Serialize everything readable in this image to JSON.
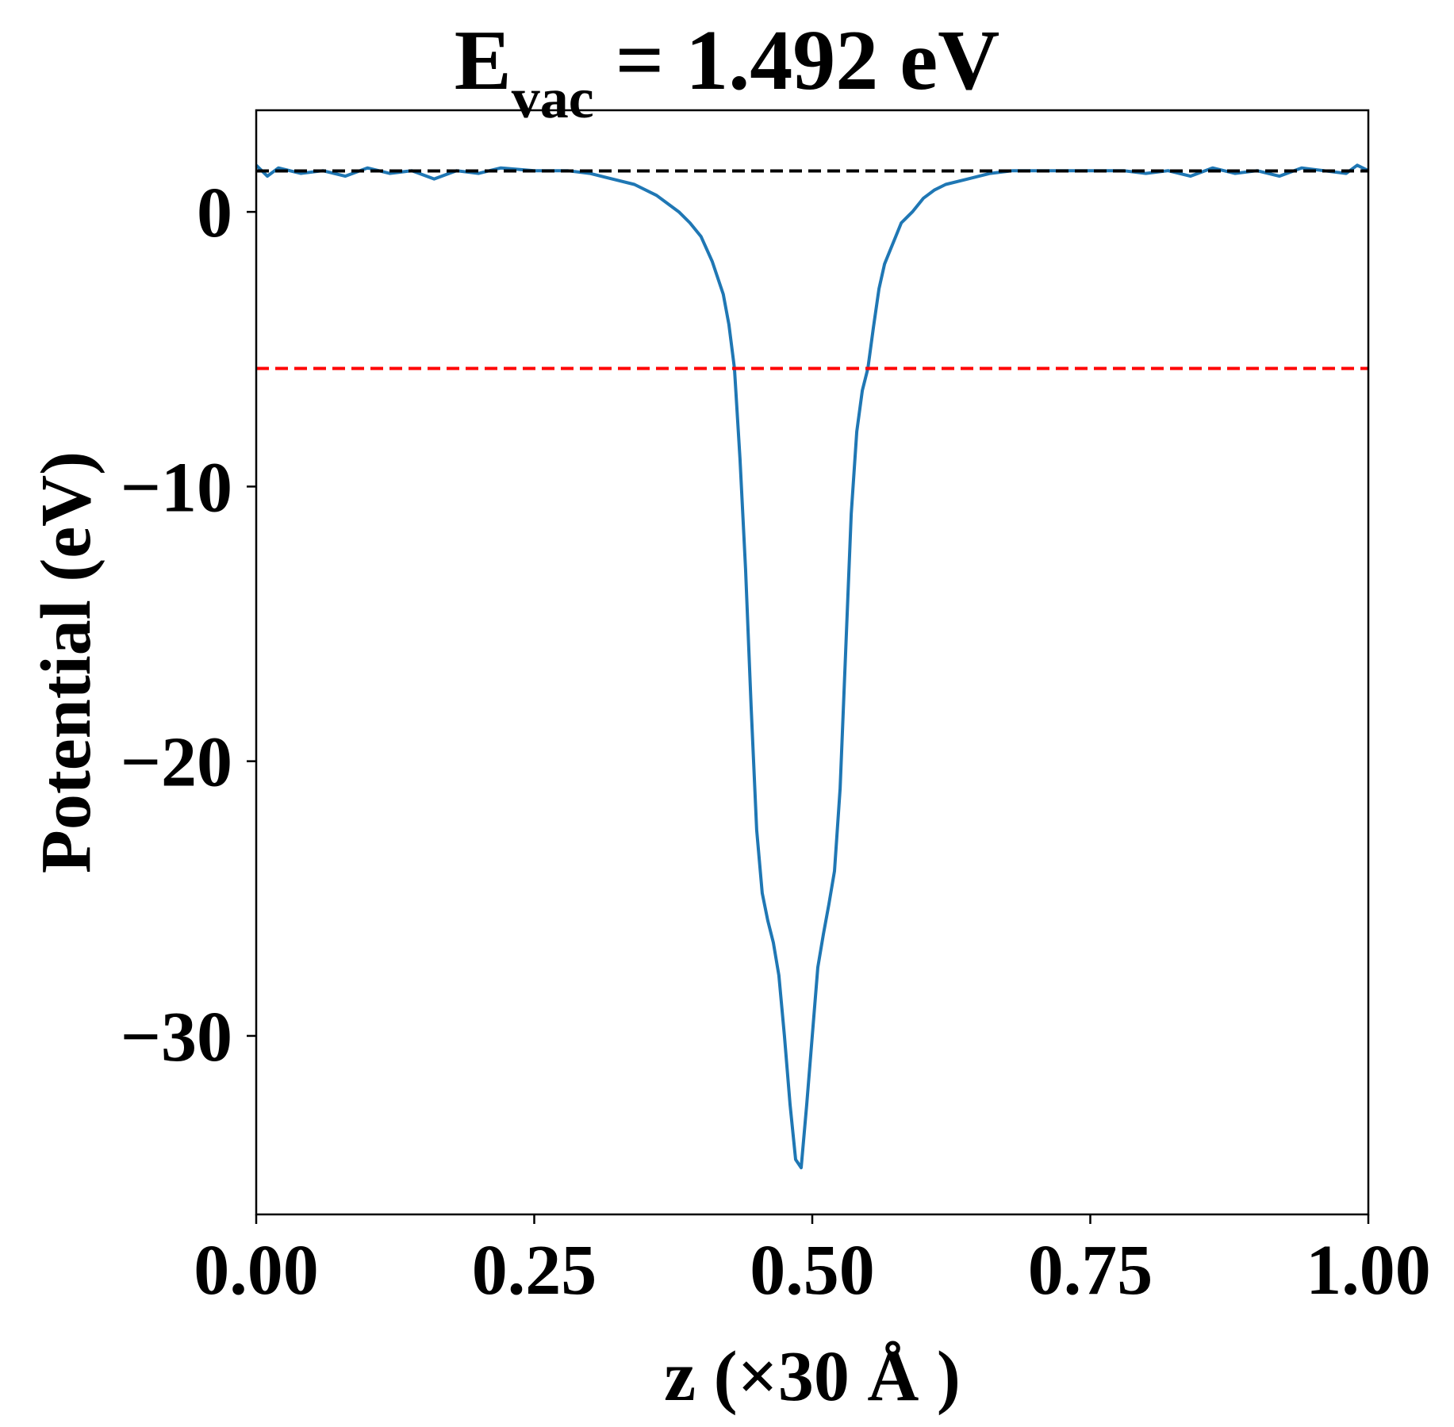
{
  "title": {
    "main": "E",
    "subscript": "vac",
    "rest": " = 1.492 eV"
  },
  "chart_data": {
    "type": "line",
    "xlabel": "z (×30 Å )",
    "ylabel": "Potential (eV)",
    "xlim": [
      0.0,
      1.0
    ],
    "ylim": [
      -36.5,
      3.7
    ],
    "xticks": [
      0.0,
      0.25,
      0.5,
      0.75,
      1.0
    ],
    "xtick_labels": [
      "0.00",
      "0.25",
      "0.50",
      "0.75",
      "1.00"
    ],
    "yticks": [
      0,
      -10,
      -20,
      -30
    ],
    "ytick_labels": [
      "0",
      "−10",
      "−20",
      "−30"
    ],
    "grid": false,
    "hlines": [
      {
        "y": 1.492,
        "color": "#000000",
        "style": "dashed"
      },
      {
        "y": -5.7,
        "color": "#ff0000",
        "style": "dashed"
      }
    ],
    "series": [
      {
        "color": "#1f77b4",
        "x": [
          0.0,
          0.01,
          0.02,
          0.04,
          0.06,
          0.08,
          0.1,
          0.12,
          0.14,
          0.16,
          0.18,
          0.2,
          0.22,
          0.25,
          0.28,
          0.3,
          0.32,
          0.34,
          0.36,
          0.38,
          0.39,
          0.4,
          0.41,
          0.42,
          0.425,
          0.43,
          0.435,
          0.44,
          0.445,
          0.45,
          0.455,
          0.46,
          0.465,
          0.47,
          0.475,
          0.48,
          0.485,
          0.49,
          0.495,
          0.5,
          0.505,
          0.51,
          0.515,
          0.52,
          0.525,
          0.53,
          0.535,
          0.54,
          0.545,
          0.55,
          0.555,
          0.56,
          0.565,
          0.57,
          0.575,
          0.58,
          0.59,
          0.6,
          0.61,
          0.62,
          0.64,
          0.66,
          0.68,
          0.7,
          0.72,
          0.75,
          0.78,
          0.8,
          0.82,
          0.84,
          0.86,
          0.88,
          0.9,
          0.92,
          0.94,
          0.96,
          0.98,
          0.99,
          1.0
        ],
        "y": [
          1.7,
          1.3,
          1.6,
          1.4,
          1.5,
          1.3,
          1.6,
          1.4,
          1.5,
          1.2,
          1.5,
          1.4,
          1.6,
          1.5,
          1.5,
          1.4,
          1.2,
          1.0,
          0.6,
          0.0,
          -0.4,
          -0.9,
          -1.8,
          -3.0,
          -4.1,
          -5.7,
          -9.0,
          -13.0,
          -18.0,
          -22.5,
          -24.8,
          -25.8,
          -26.6,
          -27.8,
          -30.0,
          -32.5,
          -34.5,
          -34.8,
          -32.5,
          -30.0,
          -27.5,
          -26.3,
          -25.2,
          -24.0,
          -21.0,
          -16.0,
          -11.0,
          -8.0,
          -6.5,
          -5.7,
          -4.2,
          -2.8,
          -1.9,
          -1.4,
          -0.9,
          -0.4,
          0.0,
          0.5,
          0.8,
          1.0,
          1.2,
          1.4,
          1.5,
          1.5,
          1.5,
          1.5,
          1.5,
          1.4,
          1.5,
          1.3,
          1.6,
          1.4,
          1.5,
          1.3,
          1.6,
          1.5,
          1.4,
          1.7,
          1.5
        ]
      }
    ]
  }
}
